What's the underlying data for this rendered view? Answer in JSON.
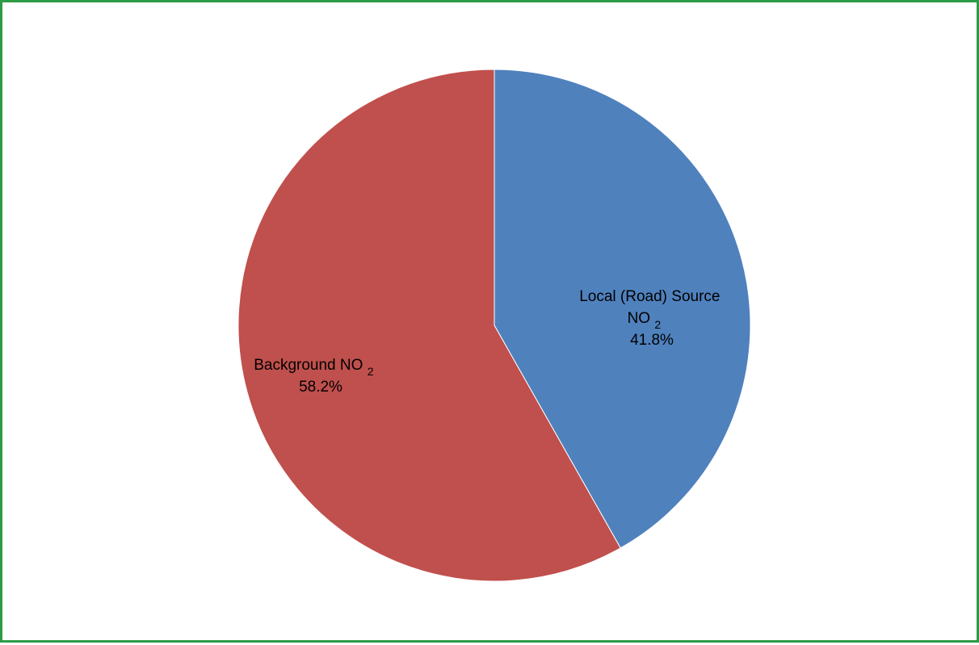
{
  "chart_data": {
    "type": "pie",
    "title": "",
    "start_angle_deg": 0,
    "direction": "clockwise",
    "slices": [
      {
        "label": "Local (Road) Source NO",
        "label_lines": [
          "Local (Road) Source",
          "NO",
          "2"
        ],
        "value": 41.8,
        "value_label": "41.8%",
        "color": "#4f81bd"
      },
      {
        "label": "Background NO",
        "label_lines": [
          "Background NO",
          "2"
        ],
        "value": 58.2,
        "value_label": "58.2%",
        "color": "#c0504d"
      }
    ],
    "legend": "none"
  }
}
